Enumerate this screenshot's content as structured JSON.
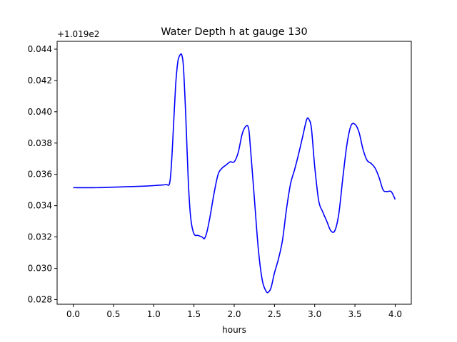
{
  "chart_data": {
    "type": "line",
    "title": "Water Depth h at gauge 130",
    "xlabel": "hours",
    "ylabel": "",
    "offset_label": "+1.019e2",
    "xlim": [
      -0.2,
      4.2
    ],
    "ylim": [
      0.0277,
      0.0445
    ],
    "grid": false,
    "x_ticks": [
      0.0,
      0.5,
      1.0,
      1.5,
      2.0,
      2.5,
      3.0,
      3.5,
      4.0
    ],
    "x_tick_labels": [
      "0.0",
      "0.5",
      "1.0",
      "1.5",
      "2.0",
      "2.5",
      "3.0",
      "3.5",
      "4.0"
    ],
    "y_ticks": [
      0.028,
      0.03,
      0.032,
      0.034,
      0.036,
      0.038,
      0.04,
      0.042,
      0.044
    ],
    "y_tick_labels": [
      "0.028",
      "0.030",
      "0.032",
      "0.034",
      "0.036",
      "0.038",
      "0.040",
      "0.042",
      "0.044"
    ],
    "series": [
      {
        "color": "#0000ff",
        "x": [
          0.0,
          0.3,
          0.6,
          0.9,
          1.05,
          1.15,
          1.2,
          1.23,
          1.27,
          1.3,
          1.33,
          1.35,
          1.37,
          1.4,
          1.43,
          1.46,
          1.5,
          1.55,
          1.6,
          1.63,
          1.66,
          1.7,
          1.75,
          1.8,
          1.85,
          1.9,
          1.95,
          2.0,
          2.05,
          2.1,
          2.15,
          2.18,
          2.2,
          2.25,
          2.3,
          2.35,
          2.4,
          2.43,
          2.46,
          2.5,
          2.55,
          2.6,
          2.65,
          2.7,
          2.75,
          2.8,
          2.85,
          2.9,
          2.93,
          2.96,
          3.0,
          3.05,
          3.1,
          3.15,
          3.2,
          3.25,
          3.3,
          3.35,
          3.4,
          3.45,
          3.5,
          3.55,
          3.6,
          3.65,
          3.7,
          3.75,
          3.8,
          3.85,
          3.9,
          3.95,
          4.0
        ],
        "y": [
          0.03515,
          0.03515,
          0.0352,
          0.03525,
          0.0353,
          0.03535,
          0.0355,
          0.0375,
          0.0415,
          0.0432,
          0.04365,
          0.0436,
          0.0428,
          0.0395,
          0.0355,
          0.0332,
          0.0322,
          0.0321,
          0.032,
          0.0319,
          0.0323,
          0.0333,
          0.0348,
          0.036,
          0.0364,
          0.0366,
          0.0368,
          0.0368,
          0.0374,
          0.0386,
          0.0391,
          0.0389,
          0.0378,
          0.0345,
          0.0312,
          0.0292,
          0.0285,
          0.0285,
          0.0288,
          0.0297,
          0.0306,
          0.0318,
          0.0338,
          0.0354,
          0.0363,
          0.0373,
          0.0384,
          0.0395,
          0.0395,
          0.0389,
          0.0365,
          0.0343,
          0.0336,
          0.033,
          0.0324,
          0.0324,
          0.0335,
          0.0358,
          0.0379,
          0.0391,
          0.0392,
          0.0387,
          0.0376,
          0.0369,
          0.0367,
          0.0364,
          0.0358,
          0.035,
          0.0349,
          0.0349,
          0.0344
        ]
      }
    ]
  }
}
